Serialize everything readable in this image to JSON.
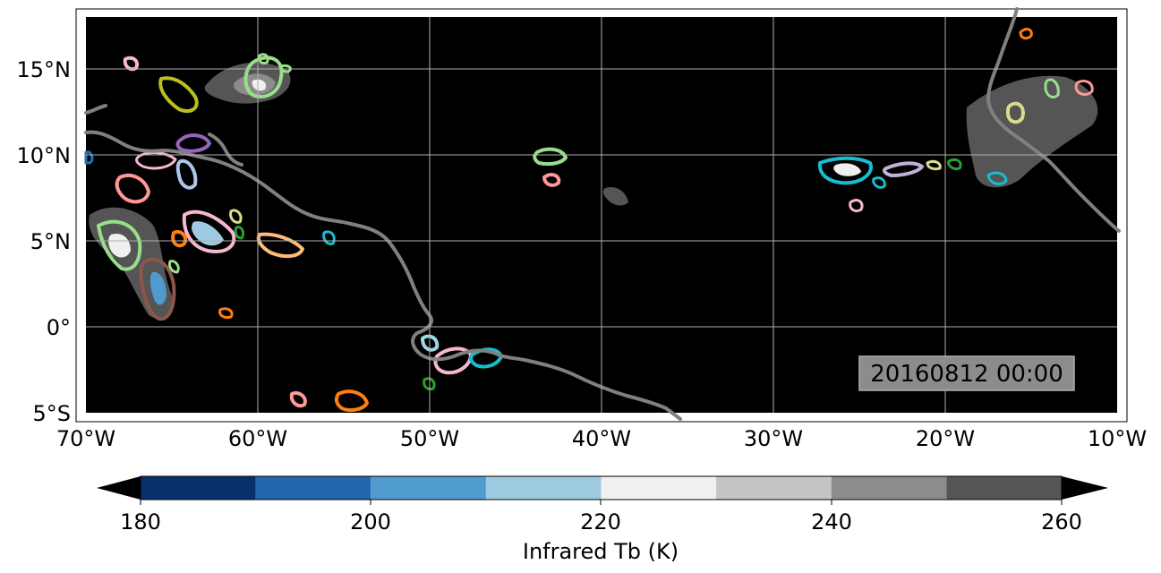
{
  "map": {
    "axes": {
      "lon_ticks": [
        "70°W",
        "60°W",
        "50°W",
        "40°W",
        "30°W",
        "20°W",
        "10°W"
      ],
      "lat_ticks": [
        "15°N",
        "10°N",
        "5°N",
        "0°",
        "5°S"
      ],
      "lon_range": [
        -70,
        -10
      ],
      "lat_range": [
        -5,
        18
      ],
      "grid": true
    },
    "timestamp": "20160812 00:00",
    "background_color": "#000000",
    "coastline_color": "#808080"
  },
  "colorbar": {
    "label": "Infrared Tb (K)",
    "ticks": [
      "180",
      "200",
      "220",
      "240",
      "260"
    ],
    "extend": "both",
    "bins": [
      {
        "range": [
          180,
          190
        ],
        "color": "#08306b"
      },
      {
        "range": [
          190,
          200
        ],
        "color": "#2166ac"
      },
      {
        "range": [
          200,
          210
        ],
        "color": "#4f9bcd"
      },
      {
        "range": [
          210,
          220
        ],
        "color": "#9ecae1"
      },
      {
        "range": [
          220,
          230
        ],
        "color": "#f0f0f0"
      },
      {
        "range": [
          230,
          240
        ],
        "color": "#c4c4c4"
      },
      {
        "range": [
          240,
          250
        ],
        "color": "#8c8c8c"
      },
      {
        "range": [
          250,
          260
        ],
        "color": "#555555"
      }
    ],
    "under_color": "#000000",
    "over_color": "#000000"
  }
}
